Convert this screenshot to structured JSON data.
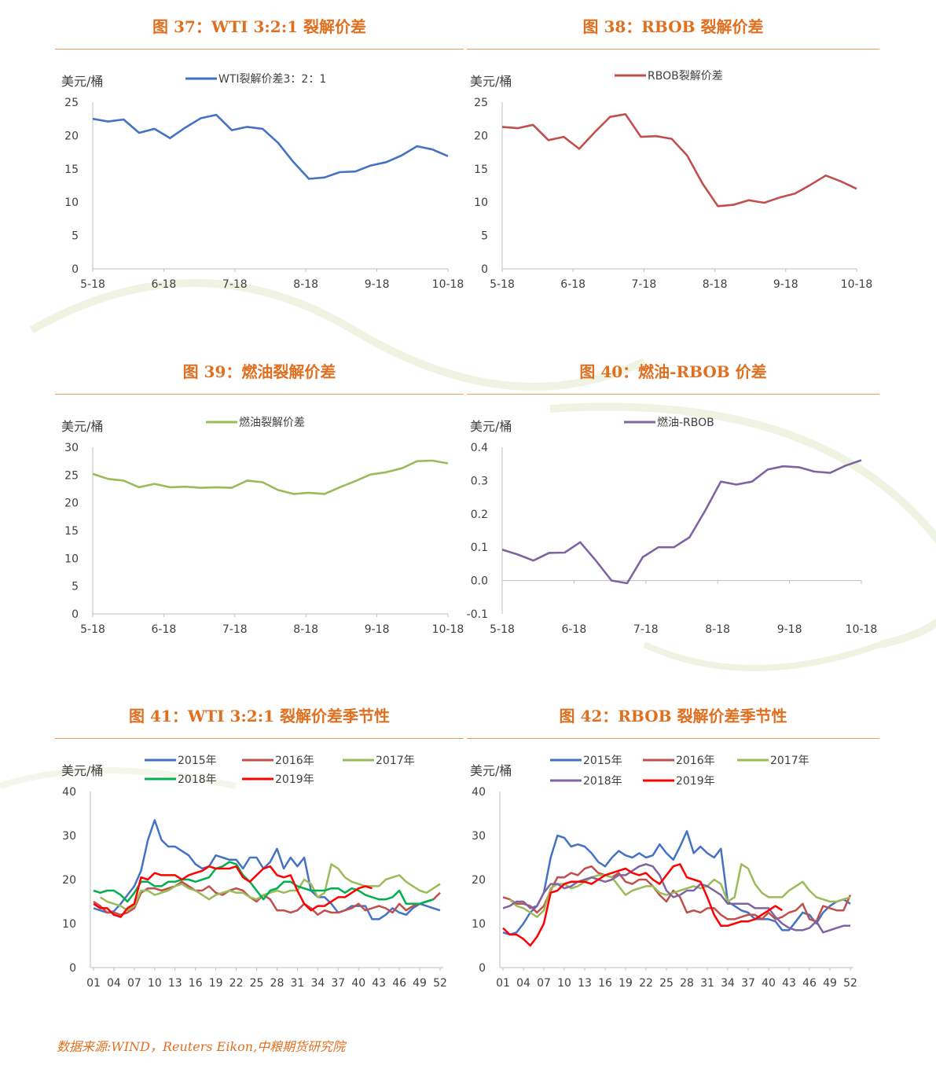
{
  "source": "数据来源:WIND，Reuters Eikon,中粮期货研究院",
  "colors": {
    "title": "#e07020",
    "blue": "#4472c4",
    "red": "#c0504d",
    "green": "#9bbb59",
    "purple": "#8064a2",
    "brightgreen": "#00b050",
    "brightred": "#ff0000"
  },
  "chart_data": [
    {
      "id": "c37",
      "type": "line",
      "title": "图 37：WTI 3:2:1 裂解价差",
      "ylabel": "美元/桶",
      "ylim": [
        0,
        25
      ],
      "yticks": [
        "0",
        "5",
        "10",
        "15",
        "20",
        "25"
      ],
      "x_labels": [
        "5-18",
        "6-18",
        "7-18",
        "8-18",
        "9-18",
        "10-18"
      ],
      "series": [
        {
          "name": "WTI裂解价差3：2：1",
          "color": "#4472c4",
          "values": [
            22.5,
            22.1,
            22.4,
            20.4,
            21.0,
            19.6,
            21.2,
            22.6,
            23.1,
            20.8,
            21.3,
            21.0,
            18.9,
            16.0,
            13.5,
            13.7,
            14.5,
            14.6,
            15.5,
            16.0,
            17.0,
            18.4,
            17.9,
            16.9
          ]
        }
      ]
    },
    {
      "id": "c38",
      "type": "line",
      "title": "图 38：RBOB 裂解价差",
      "ylabel": "美元/桶",
      "ylim": [
        0,
        25
      ],
      "yticks": [
        "0",
        "5",
        "10",
        "15",
        "20",
        "25"
      ],
      "x_labels": [
        "5-18",
        "6-18",
        "7-18",
        "8-18",
        "9-18",
        "10-18"
      ],
      "series": [
        {
          "name": "RBOB裂解价差",
          "color": "#c0504d",
          "values": [
            21.3,
            21.1,
            21.6,
            19.3,
            19.8,
            18.0,
            20.5,
            22.8,
            23.2,
            19.8,
            19.9,
            19.5,
            17.0,
            12.8,
            9.4,
            9.6,
            10.3,
            9.9,
            10.7,
            11.3,
            12.6,
            14.0,
            13.1,
            12.0
          ]
        }
      ]
    },
    {
      "id": "c39",
      "type": "line",
      "title": "图 39：燃油裂解价差",
      "ylabel": "美元/桶",
      "ylim": [
        0,
        30
      ],
      "yticks": [
        "0",
        "5",
        "10",
        "15",
        "20",
        "25",
        "30"
      ],
      "x_labels": [
        "5-18",
        "6-18",
        "7-18",
        "8-18",
        "9-18",
        "10-18"
      ],
      "series": [
        {
          "name": "燃油裂解价差",
          "color": "#9bbb59",
          "values": [
            25.2,
            24.3,
            24.0,
            22.8,
            23.4,
            22.8,
            22.9,
            22.7,
            22.8,
            22.7,
            24.0,
            23.7,
            22.3,
            21.6,
            21.8,
            21.6,
            22.8,
            23.9,
            25.1,
            25.5,
            26.2,
            27.5,
            27.6,
            27.1
          ]
        }
      ]
    },
    {
      "id": "c40",
      "type": "line",
      "title": "图 40：燃油-RBOB 价差",
      "ylabel": "美元/桶",
      "ylim": [
        -0.1,
        0.4
      ],
      "yticks": [
        "-0.1",
        "0.0",
        "0.1",
        "0.2",
        "0.3",
        "0.4"
      ],
      "x_labels": [
        "5-18",
        "6-18",
        "7-18",
        "8-18",
        "9-18",
        "10-18"
      ],
      "series": [
        {
          "name": "燃油-RBOB",
          "color": "#8064a2",
          "values": [
            0.093,
            0.078,
            0.06,
            0.083,
            0.084,
            0.115,
            0.06,
            0.0,
            -0.008,
            0.07,
            0.1,
            0.1,
            0.13,
            0.21,
            0.297,
            0.288,
            0.297,
            0.333,
            0.343,
            0.34,
            0.327,
            0.323,
            0.345,
            0.361
          ]
        }
      ]
    },
    {
      "id": "c41",
      "type": "line",
      "title": "图 41：WTI 3:2:1 裂解价差季节性",
      "ylabel": "美元/桶",
      "ylim": [
        0,
        40
      ],
      "yticks": [
        "0",
        "10",
        "20",
        "30",
        "40"
      ],
      "x_labels": [
        "01",
        "04",
        "07",
        "10",
        "13",
        "16",
        "19",
        "22",
        "25",
        "28",
        "31",
        "34",
        "37",
        "40",
        "43",
        "46",
        "49",
        "52"
      ],
      "series": [
        {
          "name": "2015年",
          "color": "#4472c4",
          "values": [
            13.5,
            13.0,
            12.5,
            12.8,
            14.5,
            16.5,
            18.5,
            22.0,
            29.0,
            33.5,
            29.0,
            27.5,
            27.5,
            26.5,
            25.5,
            23.5,
            22.5,
            23.0,
            25.5,
            25.0,
            24.5,
            24.5,
            22.5,
            25.0,
            25.0,
            22.5,
            24.0,
            27.0,
            22.5,
            25.0,
            23.0,
            25.0,
            17.5,
            16.0,
            16.0,
            14.5,
            12.5,
            13.0,
            14.0,
            14.0,
            14.0,
            11.0,
            11.0,
            12.0,
            13.5,
            12.5,
            12.0,
            13.5,
            14.5,
            14.0,
            13.5,
            13.0
          ]
        },
        {
          "name": "2016年",
          "color": "#c0504d",
          "values": [
            15.0,
            14.0,
            12.5,
            12.5,
            12.0,
            12.5,
            13.5,
            17.0,
            18.0,
            18.0,
            17.5,
            18.0,
            18.5,
            19.5,
            18.5,
            17.5,
            17.5,
            18.5,
            17.0,
            16.5,
            17.5,
            18.0,
            17.5,
            16.0,
            15.0,
            16.5,
            15.5,
            13.0,
            13.0,
            12.5,
            13.0,
            14.5,
            13.5,
            12.0,
            13.0,
            12.5,
            12.5,
            13.0,
            13.5,
            14.5,
            13.0,
            13.5,
            14.0,
            13.5,
            12.5,
            14.5,
            13.0,
            14.0,
            14.5,
            15.0,
            15.5,
            17.0
          ]
        },
        {
          "name": "2017年",
          "color": "#9bbb59",
          "values": [
            null,
            16.0,
            15.0,
            14.5,
            14.0,
            13.0,
            14.0,
            17.5,
            17.5,
            16.5,
            17.0,
            17.5,
            18.5,
            19.0,
            18.0,
            17.5,
            16.5,
            15.5,
            16.5,
            17.0,
            17.5,
            17.0,
            17.0,
            16.0,
            15.5,
            16.5,
            17.0,
            17.5,
            17.0,
            17.5,
            17.5,
            20.0,
            19.0,
            16.0,
            17.0,
            23.5,
            22.5,
            20.5,
            19.5,
            19.0,
            18.5,
            18.5,
            18.5,
            20.0,
            20.5,
            21.0,
            19.5,
            18.5,
            17.5,
            17.0,
            18.0,
            19.0
          ]
        },
        {
          "name": "2018年",
          "color": "#00b050",
          "values": [
            17.5,
            17.0,
            17.5,
            17.5,
            16.5,
            15.0,
            17.0,
            19.5,
            19.5,
            18.5,
            18.5,
            19.5,
            19.5,
            20.0,
            20.0,
            19.5,
            20.0,
            20.5,
            22.5,
            23.0,
            24.0,
            23.5,
            21.0,
            19.5,
            17.5,
            15.5,
            17.5,
            18.0,
            19.5,
            19.5,
            18.5,
            18.0,
            17.5,
            17.5,
            17.5,
            18.0,
            18.0,
            17.0,
            18.0,
            17.5,
            16.5,
            16.0,
            15.5,
            15.5,
            16.0,
            17.5,
            14.5,
            14.5,
            14.5,
            15.0,
            15.5,
            null
          ]
        },
        {
          "name": "2019年",
          "color": "#ff0000",
          "values": [
            14.5,
            13.5,
            13.5,
            12.0,
            11.5,
            13.5,
            14.5,
            20.5,
            20.0,
            21.5,
            21.0,
            21.0,
            21.0,
            20.0,
            21.0,
            21.5,
            22.0,
            23.0,
            22.5,
            22.5,
            22.5,
            23.0,
            20.5,
            19.5,
            21.0,
            22.5,
            23.0,
            21.0,
            20.5,
            21.0,
            17.5,
            14.5,
            13.0,
            14.0,
            14.0,
            15.0,
            16.0,
            16.0,
            17.0,
            18.0,
            18.5,
            18.0,
            null,
            null,
            null,
            null,
            null,
            null,
            null,
            null,
            null,
            null
          ]
        }
      ]
    },
    {
      "id": "c42",
      "type": "line",
      "title": "图 42：RBOB 裂解价差季节性",
      "ylabel": "美元/桶",
      "ylim": [
        0,
        40
      ],
      "yticks": [
        "0",
        "10",
        "20",
        "30",
        "40"
      ],
      "x_labels": [
        "01",
        "04",
        "07",
        "10",
        "13",
        "16",
        "19",
        "22",
        "25",
        "28",
        "31",
        "34",
        "37",
        "40",
        "43",
        "46",
        "49",
        "52"
      ],
      "series": [
        {
          "name": "2015年",
          "color": "#4472c4",
          "values": [
            8.0,
            7.5,
            8.0,
            10.0,
            12.5,
            14.0,
            17.0,
            25.0,
            30.0,
            29.5,
            27.5,
            28.0,
            27.5,
            26.0,
            24.0,
            23.0,
            25.0,
            26.5,
            25.5,
            25.0,
            26.0,
            25.0,
            25.5,
            28.0,
            26.0,
            24.5,
            27.5,
            31.0,
            26.0,
            27.5,
            26.0,
            25.0,
            27.0,
            15.0,
            14.0,
            13.0,
            12.5,
            11.0,
            11.0,
            11.0,
            10.5,
            8.5,
            8.5,
            10.5,
            12.5,
            12.0,
            10.0,
            12.5,
            14.0,
            15.0,
            15.5,
            14.5
          ]
        },
        {
          "name": "2016年",
          "color": "#c0504d",
          "values": [
            16.0,
            15.5,
            14.5,
            14.5,
            14.0,
            12.5,
            14.0,
            17.5,
            20.5,
            20.5,
            21.5,
            21.0,
            22.5,
            23.0,
            21.5,
            21.0,
            20.5,
            21.5,
            19.5,
            19.0,
            20.0,
            20.0,
            18.5,
            16.5,
            15.0,
            17.5,
            16.0,
            12.5,
            13.0,
            12.5,
            13.5,
            13.5,
            12.0,
            11.0,
            11.0,
            11.5,
            12.0,
            12.0,
            11.0,
            12.5,
            11.0,
            11.5,
            12.5,
            13.0,
            14.5,
            11.0,
            10.5,
            14.0,
            13.5,
            13.0,
            13.0,
            16.5
          ]
        },
        {
          "name": "2017年",
          "color": "#9bbb59",
          "values": [
            null,
            15.5,
            14.0,
            13.5,
            12.5,
            11.5,
            13.0,
            18.0,
            19.0,
            19.0,
            18.0,
            18.5,
            19.5,
            20.5,
            21.0,
            21.0,
            20.5,
            18.5,
            16.5,
            17.5,
            18.0,
            18.5,
            18.5,
            17.0,
            16.5,
            17.0,
            17.5,
            18.0,
            18.5,
            18.0,
            18.5,
            20.0,
            19.0,
            15.0,
            16.0,
            23.5,
            22.5,
            19.0,
            17.0,
            16.0,
            16.0,
            16.0,
            17.5,
            18.5,
            19.5,
            17.5,
            16.0,
            15.5,
            15.0,
            15.0,
            15.5,
            16.0
          ]
        },
        {
          "name": "2018年",
          "color": "#8064a2",
          "values": [
            13.5,
            14.0,
            15.0,
            15.0,
            13.5,
            14.0,
            17.0,
            19.0,
            19.0,
            18.0,
            18.5,
            19.5,
            20.0,
            20.5,
            20.0,
            19.5,
            20.0,
            21.0,
            21.0,
            22.0,
            23.0,
            23.5,
            23.0,
            21.0,
            17.5,
            16.0,
            16.5,
            17.5,
            17.5,
            19.0,
            18.5,
            17.5,
            16.5,
            14.5,
            14.5,
            14.5,
            14.5,
            13.5,
            13.5,
            13.5,
            11.5,
            10.0,
            9.0,
            8.5,
            8.5,
            9.0,
            10.5,
            8.0,
            8.5,
            9.0,
            9.5,
            9.5
          ]
        },
        {
          "name": "2019年",
          "color": "#ff0000",
          "values": [
            9.0,
            7.5,
            7.5,
            6.5,
            5.0,
            7.0,
            10.0,
            17.0,
            17.5,
            19.0,
            19.5,
            19.5,
            19.5,
            19.0,
            20.0,
            21.0,
            21.5,
            22.0,
            22.5,
            21.5,
            21.0,
            21.5,
            20.0,
            19.0,
            21.0,
            23.0,
            23.5,
            20.5,
            20.0,
            19.5,
            16.0,
            12.0,
            9.5,
            9.5,
            10.0,
            10.5,
            10.5,
            11.0,
            12.0,
            13.0,
            14.0,
            13.0,
            null,
            null,
            null,
            null,
            null,
            null,
            null,
            null,
            null,
            null
          ]
        }
      ]
    }
  ]
}
